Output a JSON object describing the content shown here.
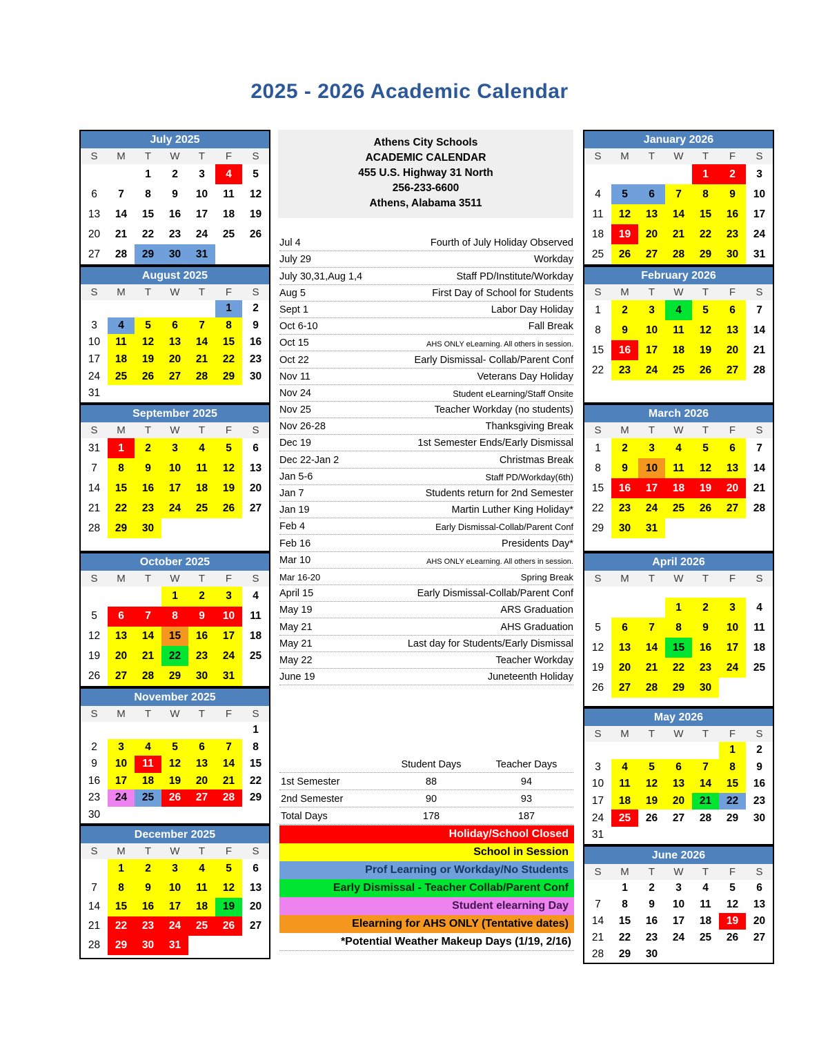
{
  "title": "2025 - 2026 Academic Calendar",
  "school_info": {
    "lines": [
      "Athens City Schools",
      "ACADEMIC CALENDAR",
      "455 U.S. Highway 31 North",
      "256-233-6600",
      "Athens, Alabama 3511"
    ]
  },
  "weekday_headers": [
    "S",
    "M",
    "T",
    "W",
    "T",
    "F",
    "S"
  ],
  "colors": {
    "red": "#FF0000",
    "yellow": "#FFFF00",
    "blue": "#6FA0DC",
    "green": "#00E432",
    "violet": "#EE82EE",
    "orange": "#F5971F",
    "header_blue": "#4F81BD",
    "title_blue": "#2C5898"
  },
  "months": {
    "july_2025": {
      "label": "July 2025",
      "weeks": [
        [
          "",
          "",
          "1",
          "2",
          "3",
          "4|r",
          "5"
        ],
        [
          "6",
          "7",
          "8",
          "9",
          "10",
          "11",
          "12"
        ],
        [
          "13",
          "14",
          "15",
          "16",
          "17",
          "18",
          "19"
        ],
        [
          "20",
          "21",
          "22",
          "23",
          "24",
          "25",
          "26"
        ],
        [
          "27",
          "28",
          "29|b",
          "30|b",
          "31|b",
          "",
          ""
        ]
      ]
    },
    "august_2025": {
      "label": "August 2025",
      "weeks": [
        [
          "",
          "",
          "",
          "",
          "",
          "1|b",
          "2"
        ],
        [
          "3",
          "4|b",
          "5|y",
          "6|y",
          "7|y",
          "8|y",
          "9"
        ],
        [
          "10",
          "11|y",
          "12|y",
          "13|y",
          "14|y",
          "15|y",
          "16"
        ],
        [
          "17",
          "18|y",
          "19|y",
          "20|y",
          "21|y",
          "22|y",
          "23"
        ],
        [
          "24",
          "25|y",
          "26|y",
          "27|y",
          "28|y",
          "29|y",
          "30"
        ],
        [
          "31",
          "",
          "",
          "",
          "",
          "",
          ""
        ]
      ]
    },
    "september_2025": {
      "label": "September 2025",
      "weeks": [
        [
          "31",
          "1|r",
          "2|y",
          "3|y",
          "4|y",
          "5|y",
          "6"
        ],
        [
          "7",
          "8|y",
          "9|y",
          "10|y",
          "11|y",
          "12|y",
          "13"
        ],
        [
          "14",
          "15|y",
          "16|y",
          "17|y",
          "18|y",
          "19|y",
          "20"
        ],
        [
          "21",
          "22|y",
          "23|y",
          "24|y",
          "25|y",
          "26|y",
          "27"
        ],
        [
          "28",
          "29|y",
          "30|y",
          "",
          "",
          "",
          ""
        ]
      ]
    },
    "october_2025": {
      "label": "October 2025",
      "weeks": [
        [
          "",
          "",
          "",
          "1|y",
          "2|y",
          "3|y",
          "4"
        ],
        [
          "5",
          "6|r",
          "7|r",
          "8|r",
          "9|r",
          "10|r",
          "11"
        ],
        [
          "12",
          "13|y",
          "14|y",
          "15|o",
          "16|y",
          "17|y",
          "18"
        ],
        [
          "19",
          "20|y",
          "21|y",
          "22|g",
          "23|y",
          "24|y",
          "25"
        ],
        [
          "26",
          "27|y",
          "28|y",
          "29|y",
          "30|y",
          "31|y",
          ""
        ]
      ]
    },
    "november_2025": {
      "label": "November 2025",
      "weeks": [
        [
          "",
          "",
          "",
          "",
          "",
          "",
          "1"
        ],
        [
          "2",
          "3|y",
          "4|y",
          "5|y",
          "6|y",
          "7|y",
          "8"
        ],
        [
          "9",
          "10|y",
          "11|r",
          "12|y",
          "13|y",
          "14|y",
          "15"
        ],
        [
          "16",
          "17|y",
          "18|y",
          "19|y",
          "20|y",
          "21|y",
          "22"
        ],
        [
          "23",
          "24|v",
          "25|b",
          "26|r",
          "27|r",
          "28|r",
          "29"
        ],
        [
          "30",
          "",
          "",
          "",
          "",
          "",
          ""
        ]
      ]
    },
    "december_2025": {
      "label": "December 2025",
      "weeks": [
        [
          "",
          "1|y",
          "2|y",
          "3|y",
          "4|y",
          "5|y",
          "6"
        ],
        [
          "7",
          "8|y",
          "9|y",
          "10|y",
          "11|y",
          "12|y",
          "13"
        ],
        [
          "14",
          "15|y",
          "16|y",
          "17|y",
          "18|y",
          "19|g",
          "20"
        ],
        [
          "21",
          "22|r",
          "23|r",
          "24|r",
          "25|r",
          "26|r",
          "27"
        ],
        [
          "28",
          "29|r",
          "30|r",
          "31|r",
          "",
          "",
          ""
        ]
      ]
    },
    "january_2026": {
      "label": "January 2026",
      "weeks": [
        [
          "",
          "",
          "",
          "",
          "1|r",
          "2|r",
          "3"
        ],
        [
          "4",
          "5|b",
          "6|b",
          "7|y",
          "8|y",
          "9|y",
          "10"
        ],
        [
          "11",
          "12|y",
          "13|y",
          "14|y",
          "15|y",
          "16|y",
          "17"
        ],
        [
          "18",
          "19|r",
          "20|y",
          "21|y",
          "22|y",
          "23|y",
          "24"
        ],
        [
          "25",
          "26|y",
          "27|y",
          "28|y",
          "29|y",
          "30|y",
          "31"
        ]
      ]
    },
    "february_2026": {
      "label": "February 2026",
      "weeks": [
        [
          "1",
          "2|y",
          "3|y",
          "4|g",
          "5|y",
          "6|y",
          "7"
        ],
        [
          "8",
          "9|y",
          "10|y",
          "11|y",
          "12|y",
          "13|y",
          "14"
        ],
        [
          "15",
          "16|r",
          "17|y",
          "18|y",
          "19|y",
          "20|y",
          "21"
        ],
        [
          "22",
          "23|y",
          "24|y",
          "25|y",
          "26|y",
          "27|y",
          "28"
        ]
      ]
    },
    "march_2026": {
      "label": "March 2026",
      "weeks": [
        [
          "1",
          "2|y",
          "3|y",
          "4|y",
          "5|y",
          "6|y",
          "7"
        ],
        [
          "8",
          "9|y",
          "10|o",
          "11|y",
          "12|y",
          "13|y",
          "14"
        ],
        [
          "15",
          "16|r",
          "17|r",
          "18|r",
          "19|r",
          "20|r",
          "21"
        ],
        [
          "22",
          "23|y",
          "24|y",
          "25|y",
          "26|y",
          "27|y",
          "28"
        ],
        [
          "29",
          "30|y",
          "31|y",
          "",
          "",
          "",
          ""
        ]
      ]
    },
    "april_2026": {
      "label": "April 2026",
      "weeks": [
        [
          "",
          "",
          "",
          "",
          "",
          "",
          ""
        ],
        [
          "",
          "",
          "",
          "1|y",
          "2|y",
          "3|y",
          "4"
        ],
        [
          "5",
          "6|y",
          "7|y",
          "8|y",
          "9|y",
          "10|y",
          "11"
        ],
        [
          "12",
          "13|y",
          "14|y",
          "15|g",
          "16|y",
          "17|y",
          "18"
        ],
        [
          "19",
          "20|y",
          "21|y",
          "22|y",
          "23|y",
          "24|y",
          "25"
        ],
        [
          "26",
          "27|y",
          "28|y",
          "29|y",
          "30|y",
          "",
          ""
        ]
      ]
    },
    "may_2026": {
      "label": "May 2026",
      "weeks": [
        [
          "",
          "",
          "",
          "",
          "",
          "1|y",
          "2"
        ],
        [
          "3",
          "4|y",
          "5|y",
          "6|y",
          "7|y",
          "8|y",
          "9"
        ],
        [
          "10",
          "11|y",
          "12|y",
          "13|y",
          "14|y",
          "15|y",
          "16"
        ],
        [
          "17",
          "18|y",
          "19|y",
          "20|y",
          "21|g",
          "22|b",
          "23"
        ],
        [
          "24",
          "25|r",
          "26",
          "27",
          "28",
          "29",
          "30"
        ],
        [
          "31",
          "",
          "",
          "",
          "",
          "",
          ""
        ]
      ]
    },
    "june_2026": {
      "label": "June 2026",
      "weeks": [
        [
          "",
          "1",
          "2",
          "3",
          "4",
          "5",
          "6"
        ],
        [
          "7",
          "8",
          "9",
          "10",
          "11",
          "12",
          "13"
        ],
        [
          "14",
          "15",
          "16",
          "17",
          "18",
          "19|r",
          "20"
        ],
        [
          "21",
          "22",
          "23",
          "24",
          "25",
          "26",
          "27"
        ],
        [
          "28",
          "29",
          "30",
          "",
          "",
          "",
          ""
        ]
      ]
    }
  },
  "events": [
    {
      "date": "Jul 4",
      "desc": "Fourth of July Holiday Observed"
    },
    {
      "date": "July 29",
      "desc": "Workday"
    },
    {
      "date": "July 30,31,Aug 1,4",
      "desc": "Staff PD/Institute/Workday"
    },
    {
      "date": "Aug 5",
      "desc": "First Day of School for Students"
    },
    {
      "date": "Sept 1",
      "desc": "Labor Day Holiday"
    },
    {
      "date": "Oct 6-10",
      "desc": "Fall Break"
    },
    {
      "date": "Oct 15",
      "desc": "AHS ONLY eLearning. All others in session.",
      "size": "desc-xsmall"
    },
    {
      "date": "Oct 22",
      "desc": "Early Dismissal- Collab/Parent Conf"
    },
    {
      "date": "Nov 11",
      "desc": "Veterans Day Holiday"
    },
    {
      "date": "Nov 24",
      "desc": "Student eLearning/Staff Onsite",
      "size": "desc-small"
    },
    {
      "date": "Nov 25",
      "desc": "Teacher Workday (no students)"
    },
    {
      "date": "Nov 26-28",
      "desc": "Thanksgiving Break"
    },
    {
      "date": "Dec 19",
      "desc": "1st Semester Ends/Early Dismissal"
    },
    {
      "date": "Dec 22-Jan 2",
      "desc": "Christmas Break"
    },
    {
      "date": "Jan 5-6",
      "desc": "Staff PD/Workday(6th)",
      "size": "desc-small"
    },
    {
      "date": "Jan 7",
      "desc": "Students return for 2nd Semester"
    },
    {
      "date": "Jan 19",
      "desc": "Martin Luther King Holiday*"
    },
    {
      "date": "Feb 4",
      "desc": "Early Dismissal-Collab/Parent Conf",
      "size": "desc-small"
    },
    {
      "date": "Feb 16",
      "desc": "Presidents Day*"
    },
    {
      "date": "Mar 10",
      "desc": "AHS ONLY eLearning. All others in session.",
      "size": "desc-xsmall"
    },
    {
      "date": "Mar 16-20",
      "desc": "Spring Break",
      "size": "row-small"
    },
    {
      "date": "April 15",
      "desc": "Early Dismissal-Collab/Parent Conf"
    },
    {
      "date": "May 19",
      "desc": "ARS Graduation"
    },
    {
      "date": "May 21",
      "desc": "AHS Graduation"
    },
    {
      "date": "May 21",
      "desc": "Last day for Students/Early Dismissal"
    },
    {
      "date": "May 22",
      "desc": "Teacher Workday"
    },
    {
      "date": "June 19",
      "desc": "Juneteenth Holiday"
    }
  ],
  "day_counts": {
    "headers": [
      "Student Days",
      "Teacher Days"
    ],
    "rows": [
      {
        "label": "1st Semester",
        "values": [
          "88",
          "94"
        ]
      },
      {
        "label": "2nd Semester",
        "values": [
          "90",
          "93"
        ]
      },
      {
        "label": "Total Days",
        "values": [
          "178",
          "187"
        ]
      }
    ]
  },
  "legend": [
    {
      "label": "Holiday/School Closed",
      "color_key": "red",
      "text_color": "#FFFFFF"
    },
    {
      "label": "School in Session",
      "color_key": "yellow",
      "text_color": "#000000"
    },
    {
      "label": "Prof Learning or Workday/No Students",
      "color_key": "blue",
      "text_color": "#17375E"
    },
    {
      "label": "Early Dismissal - Teacher Collab/Parent Conf",
      "color_key": "green",
      "text_color": "#0B2513"
    },
    {
      "label": "Student elearning Day",
      "color_key": "violet",
      "text_color": "#3F1550"
    },
    {
      "label": "Elearning for AHS ONLY (Tentative dates)",
      "color_key": "orange",
      "text_color": "#000000"
    }
  ],
  "weather_note": "*Potential Weather Makeup Days (1/19, 2/16)"
}
